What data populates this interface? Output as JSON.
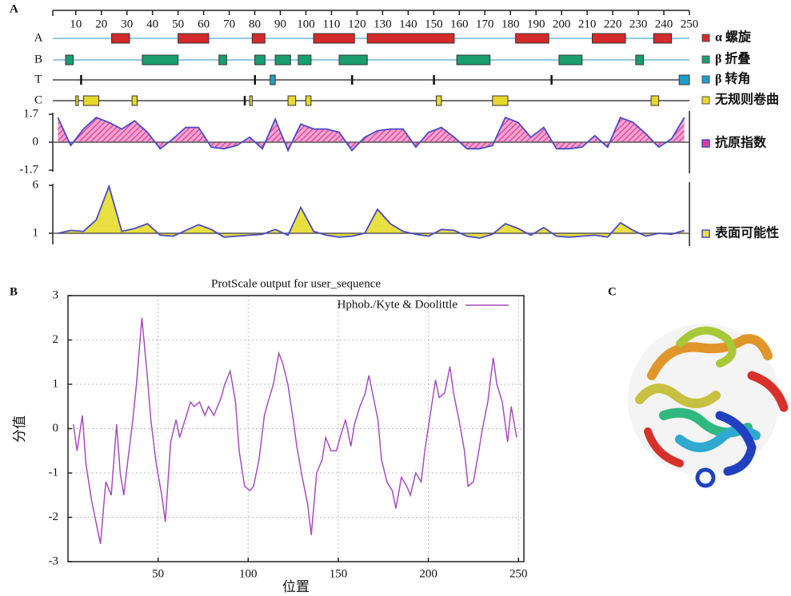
{
  "panel_labels": [
    "A",
    "B",
    "C"
  ],
  "chart_data": [
    {
      "type": "track",
      "xlim": [
        1,
        250
      ],
      "xticks": [
        10,
        20,
        30,
        40,
        50,
        60,
        70,
        80,
        90,
        100,
        110,
        120,
        130,
        140,
        150,
        160,
        170,
        180,
        190,
        200,
        210,
        220,
        230,
        240,
        250
      ],
      "tracks": [
        {
          "name": "A",
          "label": "α 螺旋",
          "color": "#d42a2a",
          "segments": [
            [
              24,
              31
            ],
            [
              50,
              62
            ],
            [
              79,
              84
            ],
            [
              103,
              119
            ],
            [
              124,
              158
            ],
            [
              182,
              195
            ],
            [
              212,
              225
            ],
            [
              236,
              243
            ]
          ]
        },
        {
          "name": "B",
          "label": "β 折叠",
          "color": "#1a9e6e",
          "segments": [
            [
              6,
              9
            ],
            [
              36,
              50
            ],
            [
              66,
              69
            ],
            [
              80,
              84
            ],
            [
              88,
              94
            ],
            [
              97,
              102
            ],
            [
              113,
              124
            ],
            [
              159,
              172
            ],
            [
              199,
              208
            ],
            [
              229,
              232
            ]
          ]
        },
        {
          "name": "T",
          "label": "β 转角",
          "color": "#1e9ec8",
          "segments": [
            [
              12,
              12
            ],
            [
              80,
              80
            ],
            [
              86,
              88
            ],
            [
              118,
              118
            ],
            [
              150,
              150
            ],
            [
              196,
              196
            ],
            [
              246,
              250
            ]
          ]
        },
        {
          "name": "C",
          "label": "无规则卷曲",
          "color": "#e8d82a",
          "segments": [
            [
              10,
              11
            ],
            [
              13,
              19
            ],
            [
              32,
              34
            ],
            [
              76,
              76
            ],
            [
              78,
              79
            ],
            [
              93,
              96
            ],
            [
              100,
              102
            ],
            [
              151,
              153
            ],
            [
              173,
              179
            ],
            [
              235,
              238
            ]
          ]
        }
      ]
    },
    {
      "type": "area",
      "xlim": [
        1,
        250
      ],
      "ylim": [
        -1.7,
        1.7
      ],
      "yticks": [
        1.7,
        0,
        -1.7
      ],
      "baseline": 0,
      "x": [
        3,
        8,
        13,
        18,
        23,
        28,
        33,
        38,
        43,
        48,
        53,
        58,
        63,
        68,
        73,
        78,
        83,
        88,
        93,
        98,
        103,
        108,
        113,
        118,
        123,
        128,
        133,
        138,
        143,
        148,
        153,
        158,
        163,
        168,
        173,
        178,
        183,
        188,
        193,
        198,
        203,
        208,
        213,
        218,
        223,
        228,
        233,
        238,
        243,
        248
      ],
      "series": [
        {
          "name": "抗原指数",
          "color": "#e0399a",
          "values": [
            1.5,
            -0.2,
            0.8,
            1.5,
            1.2,
            0.8,
            1.3,
            0.6,
            -0.4,
            0.2,
            0.9,
            0.9,
            -0.3,
            -0.4,
            -0.2,
            0.3,
            -0.4,
            1.4,
            -0.5,
            1.1,
            0.8,
            0.8,
            0.6,
            -0.5,
            0.3,
            0.7,
            0.8,
            0.8,
            -0.3,
            0.6,
            0.9,
            0.3,
            -0.4,
            -0.4,
            -0.2,
            1.5,
            1.2,
            0.3,
            0.9,
            -0.4,
            -0.4,
            -0.3,
            0.4,
            -0.3,
            1.5,
            1.2,
            0.5,
            -0.3,
            0.2,
            1.5
          ]
        }
      ]
    },
    {
      "type": "area",
      "xlim": [
        1,
        250
      ],
      "ylim": [
        0,
        6
      ],
      "yticks": [
        6,
        1
      ],
      "baseline": 1,
      "x": [
        3,
        8,
        13,
        18,
        23,
        28,
        33,
        38,
        43,
        48,
        53,
        58,
        63,
        68,
        73,
        78,
        83,
        88,
        93,
        98,
        103,
        108,
        113,
        118,
        123,
        128,
        133,
        138,
        143,
        148,
        153,
        158,
        163,
        168,
        173,
        178,
        183,
        188,
        193,
        198,
        203,
        208,
        213,
        218,
        223,
        228,
        233,
        238,
        243,
        248
      ],
      "series": [
        {
          "name": "表面可能性",
          "color": "#e8e040",
          "values": [
            1.0,
            1.3,
            1.2,
            2.4,
            5.9,
            1.2,
            1.5,
            2.0,
            0.8,
            0.7,
            1.3,
            1.9,
            1.4,
            0.6,
            0.7,
            0.8,
            0.9,
            1.4,
            0.8,
            3.7,
            1.2,
            0.8,
            0.6,
            0.7,
            1.0,
            3.5,
            2.0,
            1.2,
            0.9,
            0.7,
            1.4,
            1.3,
            0.7,
            0.5,
            0.9,
            2.0,
            1.5,
            0.8,
            1.6,
            0.7,
            0.6,
            0.7,
            0.8,
            0.6,
            2.1,
            1.3,
            0.7,
            1.0,
            0.9,
            1.3
          ]
        }
      ]
    },
    {
      "type": "line",
      "title": "ProtScale output for user_sequence",
      "xlabel": "位置",
      "ylabel": "分值",
      "grid": true,
      "xlim": [
        0,
        253
      ],
      "xticks": [
        50,
        100,
        150,
        200,
        250
      ],
      "ylim": [
        -3,
        3
      ],
      "yticks": [
        -3,
        -2,
        -1,
        0,
        1,
        2,
        3
      ],
      "x": [
        3,
        5,
        8,
        10,
        13,
        15,
        18,
        21,
        24,
        27,
        29,
        31,
        33,
        36,
        38,
        41,
        44,
        46,
        49,
        52,
        54,
        57,
        60,
        62,
        65,
        68,
        70,
        73,
        76,
        78,
        81,
        85,
        87,
        90,
        93,
        95,
        98,
        101,
        103,
        106,
        109,
        111,
        114,
        117,
        119,
        122,
        125,
        127,
        130,
        133,
        135,
        138,
        141,
        143,
        146,
        149,
        151,
        154,
        157,
        159,
        162,
        165,
        167,
        169,
        172,
        174,
        177,
        180,
        182,
        185,
        188,
        190,
        193,
        196,
        198,
        201,
        204,
        206,
        209,
        212,
        214,
        217,
        220,
        222,
        225,
        228,
        230,
        233,
        236,
        238,
        241,
        244,
        246,
        249
      ],
      "series": [
        {
          "name": "Hphob./Kyte & Doolittle",
          "color": "#a64dbf",
          "values": [
            0.1,
            -0.5,
            0.3,
            -0.8,
            -1.6,
            -2.0,
            -2.6,
            -1.2,
            -1.5,
            0.1,
            -1.0,
            -1.5,
            -0.8,
            0.2,
            1.0,
            2.5,
            1.2,
            0.2,
            -0.8,
            -1.5,
            -2.1,
            -0.3,
            0.2,
            -0.2,
            0.2,
            0.6,
            0.5,
            0.6,
            0.3,
            0.5,
            0.3,
            0.7,
            1.0,
            1.3,
            0.6,
            -0.5,
            -1.3,
            -1.4,
            -1.3,
            -0.7,
            0.3,
            0.6,
            1.0,
            1.7,
            1.5,
            1.0,
            0.2,
            -0.4,
            -1.1,
            -1.7,
            -2.4,
            -1.0,
            -0.7,
            -0.2,
            -0.5,
            -0.5,
            -0.2,
            0.2,
            -0.4,
            0.1,
            0.5,
            0.8,
            1.2,
            0.8,
            0.2,
            -0.7,
            -1.2,
            -1.4,
            -1.8,
            -1.1,
            -1.3,
            -1.5,
            -1.0,
            -1.2,
            -0.5,
            0.3,
            1.1,
            0.7,
            0.8,
            1.4,
            0.8,
            0.2,
            -0.5,
            -1.3,
            -1.2,
            -0.5,
            0.0,
            0.6,
            1.6,
            1.0,
            0.6,
            -0.3,
            0.5,
            -0.2
          ]
        }
      ]
    }
  ]
}
